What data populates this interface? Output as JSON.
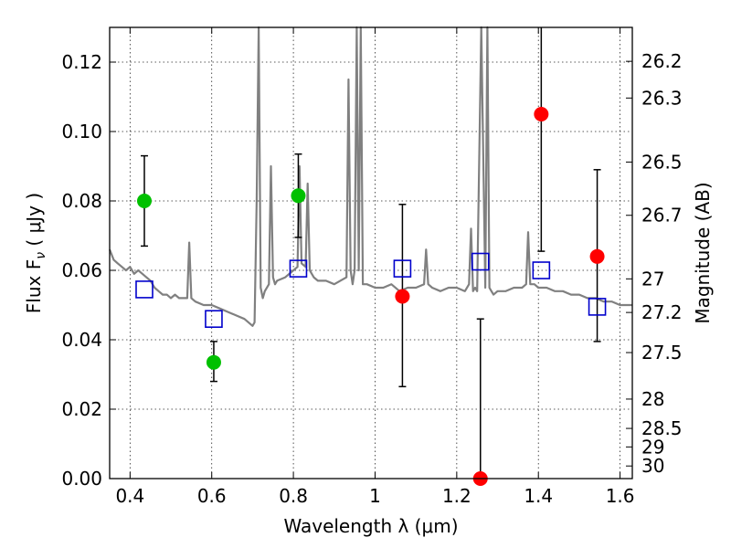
{
  "chart_data": {
    "type": "scatter",
    "xlabel": "Wavelength  λ (μm)",
    "ylabel": "Flux  F",
    "ylabel_sub": "ν",
    "ylabel_unit": "  ( μJy )",
    "ylabel_right": "Magnitude (AB)",
    "xlim": [
      0.35,
      1.63
    ],
    "ylim": [
      0.0,
      0.13
    ],
    "grid": true,
    "x_ticks": [
      {
        "value": 0.4,
        "label": "0.4"
      },
      {
        "value": 0.6,
        "label": "0.6"
      },
      {
        "value": 0.8,
        "label": "0.8"
      },
      {
        "value": 1.0,
        "label": "1"
      },
      {
        "value": 1.2,
        "label": "1.2"
      },
      {
        "value": 1.4,
        "label": "1.4"
      },
      {
        "value": 1.6,
        "label": "1.6"
      }
    ],
    "y_ticks": [
      {
        "value": 0.0,
        "label": "0.00"
      },
      {
        "value": 0.02,
        "label": "0.02"
      },
      {
        "value": 0.04,
        "label": "0.04"
      },
      {
        "value": 0.06,
        "label": "0.06"
      },
      {
        "value": 0.08,
        "label": "0.08"
      },
      {
        "value": 0.1,
        "label": "0.10"
      },
      {
        "value": 0.12,
        "label": "0.12"
      }
    ],
    "mag_ticks": [
      {
        "mag": 26.2,
        "label": "26.2"
      },
      {
        "mag": 26.3,
        "label": "26.3"
      },
      {
        "mag": 26.5,
        "label": "26.5"
      },
      {
        "mag": 26.7,
        "label": "26.7"
      },
      {
        "mag": 27.0,
        "label": "27"
      },
      {
        "mag": 27.2,
        "label": "27.2"
      },
      {
        "mag": 27.5,
        "label": "27.5"
      },
      {
        "mag": 28.0,
        "label": "28"
      },
      {
        "mag": 28.5,
        "label": "28.5"
      },
      {
        "mag": 29.0,
        "label": "29"
      },
      {
        "mag": 30.0,
        "label": "30"
      }
    ],
    "colors": {
      "spectrum": "#808080",
      "green": "#00c000",
      "red": "#ff0000",
      "model": "#0000cc",
      "error": "#000000"
    },
    "spectrum": {
      "name": "model spectrum",
      "x": [
        0.35,
        0.36,
        0.37,
        0.38,
        0.39,
        0.4,
        0.41,
        0.42,
        0.43,
        0.44,
        0.45,
        0.46,
        0.47,
        0.48,
        0.49,
        0.5,
        0.51,
        0.52,
        0.53,
        0.54,
        0.545,
        0.55,
        0.56,
        0.58,
        0.6,
        0.62,
        0.64,
        0.66,
        0.68,
        0.7,
        0.705,
        0.71,
        0.715,
        0.72,
        0.725,
        0.73,
        0.74,
        0.745,
        0.75,
        0.755,
        0.76,
        0.78,
        0.8,
        0.81,
        0.815,
        0.82,
        0.83,
        0.835,
        0.84,
        0.845,
        0.85,
        0.86,
        0.88,
        0.9,
        0.93,
        0.935,
        0.94,
        0.945,
        0.95,
        0.955,
        0.96,
        0.965,
        0.97,
        0.975,
        0.98,
        1.0,
        1.02,
        1.04,
        1.06,
        1.08,
        1.1,
        1.12,
        1.125,
        1.13,
        1.14,
        1.16,
        1.18,
        1.2,
        1.22,
        1.23,
        1.235,
        1.24,
        1.245,
        1.25,
        1.26,
        1.27,
        1.275,
        1.28,
        1.285,
        1.29,
        1.3,
        1.32,
        1.34,
        1.36,
        1.37,
        1.375,
        1.38,
        1.39,
        1.4,
        1.42,
        1.44,
        1.46,
        1.48,
        1.5,
        1.52,
        1.54,
        1.56,
        1.58,
        1.6,
        1.63
      ],
      "y": [
        0.066,
        0.063,
        0.062,
        0.061,
        0.06,
        0.061,
        0.059,
        0.06,
        0.059,
        0.058,
        0.057,
        0.055,
        0.054,
        0.053,
        0.053,
        0.052,
        0.053,
        0.052,
        0.052,
        0.052,
        0.068,
        0.052,
        0.051,
        0.05,
        0.05,
        0.049,
        0.048,
        0.047,
        0.046,
        0.044,
        0.045,
        0.08,
        0.14,
        0.055,
        0.052,
        0.054,
        0.056,
        0.09,
        0.058,
        0.056,
        0.057,
        0.058,
        0.06,
        0.061,
        0.09,
        0.062,
        0.061,
        0.085,
        0.06,
        0.059,
        0.058,
        0.057,
        0.057,
        0.056,
        0.058,
        0.115,
        0.06,
        0.056,
        0.06,
        0.14,
        0.06,
        0.14,
        0.056,
        0.056,
        0.056,
        0.055,
        0.055,
        0.056,
        0.054,
        0.055,
        0.055,
        0.056,
        0.066,
        0.056,
        0.055,
        0.054,
        0.055,
        0.055,
        0.054,
        0.056,
        0.072,
        0.054,
        0.055,
        0.054,
        0.14,
        0.055,
        0.14,
        0.055,
        0.054,
        0.053,
        0.054,
        0.054,
        0.055,
        0.055,
        0.056,
        0.071,
        0.056,
        0.056,
        0.055,
        0.055,
        0.054,
        0.054,
        0.053,
        0.053,
        0.052,
        0.052,
        0.051,
        0.051,
        0.05,
        0.05
      ]
    },
    "green_points": {
      "x": [
        0.435,
        0.605,
        0.812
      ],
      "y": [
        0.08,
        0.0335,
        0.0815
      ],
      "err_low": [
        0.067,
        0.028,
        0.0695
      ],
      "err_high": [
        0.093,
        0.0395,
        0.0935
      ]
    },
    "red_points": {
      "x": [
        1.067,
        1.258,
        1.407,
        1.544
      ],
      "y": [
        0.0525,
        0.0,
        0.105,
        0.064
      ],
      "err_low": [
        0.0265,
        0.0,
        0.0655,
        0.0395
      ],
      "err_high": [
        0.079,
        0.046,
        0.135,
        0.089
      ]
    },
    "model_points": {
      "x": [
        0.435,
        0.605,
        0.812,
        1.067,
        1.258,
        1.407,
        1.544
      ],
      "y": [
        0.0545,
        0.046,
        0.0605,
        0.0605,
        0.0625,
        0.06,
        0.0495
      ]
    }
  }
}
